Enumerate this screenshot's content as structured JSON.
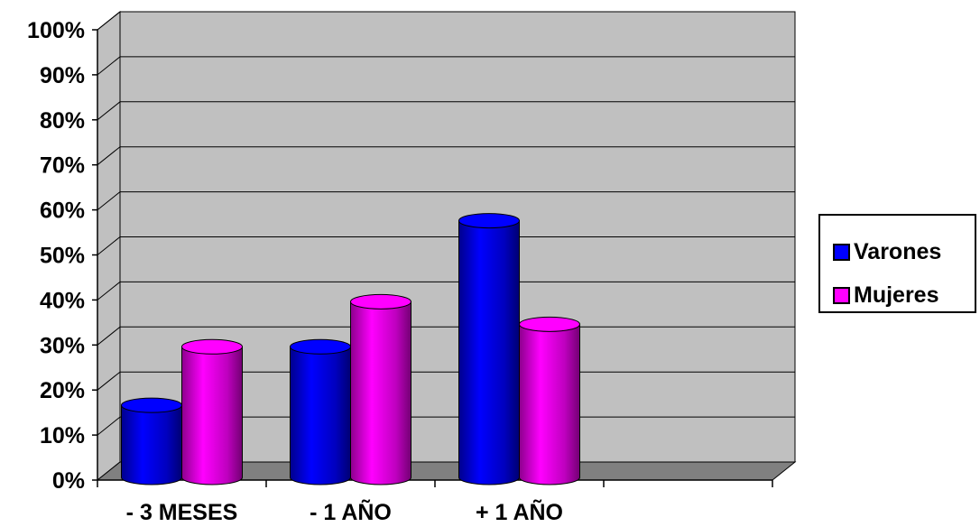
{
  "chart_data": {
    "type": "bar",
    "categories": [
      "- 3 MESES",
      "- 1 AÑO",
      "+ 1 AÑO",
      ""
    ],
    "series": [
      {
        "name": "Varones",
        "color": "#0000ff",
        "values": [
          16,
          29,
          57,
          null
        ]
      },
      {
        "name": "Mujeres",
        "color": "#ff00ff",
        "values": [
          29,
          39,
          34,
          null
        ]
      }
    ],
    "y_ticks": [
      "0%",
      "10%",
      "20%",
      "30%",
      "40%",
      "50%",
      "60%",
      "70%",
      "80%",
      "90%",
      "100%"
    ],
    "ylim": [
      0,
      100
    ],
    "y_unit": "%",
    "grid": true,
    "legend": "right",
    "colors": {
      "wall": "#c0c0c0",
      "floor": "#808080",
      "grid": "#000000"
    }
  }
}
